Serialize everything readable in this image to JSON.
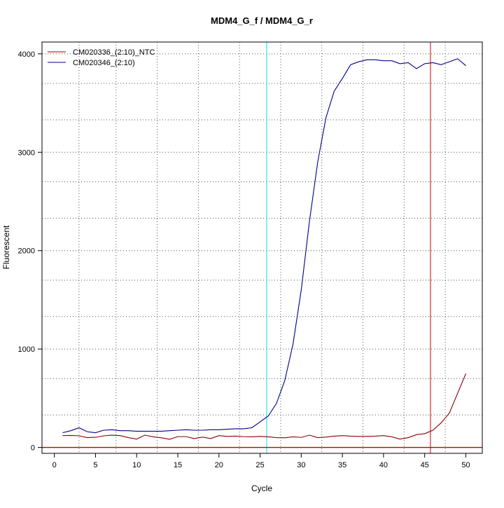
{
  "chart_data": {
    "type": "line",
    "title": "MDM4_G_f / MDM4_G_r",
    "xlabel": "Cycle",
    "ylabel": "Fluorescent",
    "xlim": [
      -1.5,
      52
    ],
    "ylim": [
      -60,
      4120
    ],
    "x_ticks": [
      0,
      5,
      10,
      15,
      20,
      25,
      30,
      35,
      40,
      45,
      50
    ],
    "x_tick_labels": [
      "0",
      "5",
      "10",
      "15",
      "20",
      "25",
      "30",
      "35",
      "40",
      "45",
      "50"
    ],
    "y_ticks": [
      0,
      1000,
      2000,
      3000,
      4000
    ],
    "y_tick_labels": [
      "0",
      "1000",
      "2000",
      "3000",
      "4000"
    ],
    "grid": true,
    "grid_style": "dotted",
    "v_grid": [
      3,
      7.5,
      12.5,
      17.5,
      22.5,
      27.5,
      32.5,
      37.5,
      42.5,
      47.5
    ],
    "h_grid": [
      0,
      330,
      700,
      1000,
      1330,
      1700,
      2000,
      2330,
      2700,
      3000,
      3330,
      3700,
      4000
    ],
    "legend_position": "top-left",
    "threshold_y": 0,
    "threshold_color": "#cc0000",
    "vlines": [
      {
        "x": 25.8,
        "color": "#00e5ee"
      },
      {
        "x": 45.7,
        "color": "#cc0000"
      }
    ],
    "x": [
      1,
      2,
      3,
      4,
      5,
      6,
      7,
      8,
      9,
      10,
      11,
      12,
      13,
      14,
      15,
      16,
      17,
      18,
      19,
      20,
      21,
      22,
      23,
      24,
      25,
      26,
      27,
      28,
      29,
      30,
      31,
      32,
      33,
      34,
      35,
      36,
      37,
      38,
      39,
      40,
      41,
      42,
      43,
      44,
      45,
      46,
      47,
      48,
      49,
      50
    ],
    "series": [
      {
        "name": "CM020336_(2:10)_NTC",
        "color": "#8b0000",
        "values": [
          120,
          122,
          118,
          100,
          103,
          118,
          125,
          120,
          100,
          85,
          125,
          108,
          98,
          83,
          110,
          110,
          90,
          105,
          90,
          120,
          112,
          115,
          110,
          108,
          112,
          108,
          100,
          98,
          108,
          102,
          125,
          100,
          105,
          115,
          120,
          115,
          112,
          112,
          115,
          120,
          108,
          85,
          100,
          130,
          140,
          175,
          250,
          350,
          550,
          750
        ]
      },
      {
        "name": "CM020346_(2:10)",
        "color": "#00008b",
        "values": [
          150,
          170,
          200,
          160,
          150,
          175,
          180,
          170,
          170,
          165,
          165,
          165,
          165,
          170,
          175,
          180,
          175,
          175,
          180,
          180,
          185,
          190,
          190,
          200,
          260,
          320,
          450,
          680,
          1050,
          1600,
          2300,
          2900,
          3350,
          3620,
          3750,
          3890,
          3920,
          3940,
          3940,
          3930,
          3930,
          3900,
          3910,
          3850,
          3900,
          3910,
          3890,
          3920,
          3950,
          3880
        ]
      }
    ]
  }
}
